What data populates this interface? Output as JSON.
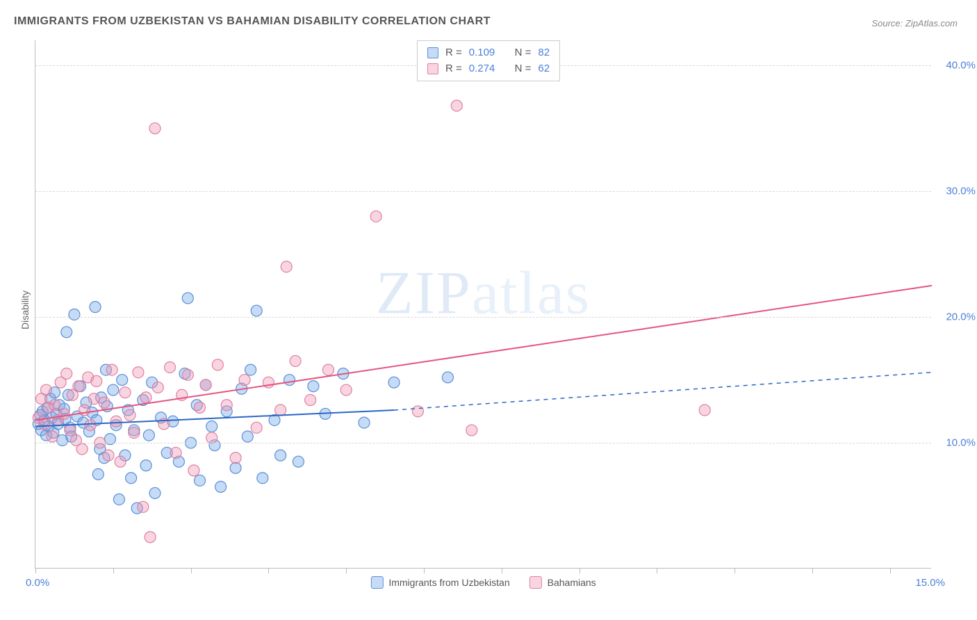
{
  "title": "IMMIGRANTS FROM UZBEKISTAN VS BAHAMIAN DISABILITY CORRELATION CHART",
  "source": "Source: ZipAtlas.com",
  "ylabel": "Disability",
  "watermark": {
    "bold": "ZIP",
    "light": "atlas"
  },
  "chart": {
    "type": "scatter",
    "background_color": "#ffffff",
    "grid_color": "#d8d8d8",
    "axis_color": "#bbbbbb",
    "tick_label_color": "#4a7fd8",
    "tick_fontsize": 15,
    "title_fontsize": 16,
    "xlim": [
      0,
      15
    ],
    "ylim": [
      0,
      42
    ],
    "xticks": [
      0,
      1.3,
      2.6,
      3.9,
      5.2,
      6.5,
      7.8,
      9.1,
      10.4,
      11.7,
      13.0,
      14.3
    ],
    "xtick_labels": {
      "0": "0.0%",
      "15": "15.0%"
    },
    "yticks": [
      10,
      20,
      30,
      40
    ],
    "ytick_labels": [
      "10.0%",
      "20.0%",
      "30.0%",
      "40.0%"
    ],
    "marker_radius": 8,
    "marker_stroke_width": 1.2,
    "line_width": 2,
    "series": [
      {
        "name": "Immigrants from Uzbekistan",
        "fill": "rgba(120,170,230,0.42)",
        "stroke": "#5b8fd6",
        "line_color": "#2b66c4",
        "stats": {
          "R": "0.109",
          "N": "82"
        },
        "trend": {
          "x1": 0,
          "y1": 11.3,
          "x2_solid": 6.0,
          "y2_solid": 12.6,
          "x2": 15,
          "y2": 15.6
        },
        "points": [
          [
            0.05,
            11.5
          ],
          [
            0.08,
            12.2
          ],
          [
            0.1,
            11.0
          ],
          [
            0.12,
            12.5
          ],
          [
            0.15,
            11.8
          ],
          [
            0.18,
            10.6
          ],
          [
            0.2,
            12.8
          ],
          [
            0.22,
            11.3
          ],
          [
            0.25,
            13.5
          ],
          [
            0.28,
            12.0
          ],
          [
            0.3,
            10.8
          ],
          [
            0.32,
            14.0
          ],
          [
            0.35,
            12.3
          ],
          [
            0.38,
            11.5
          ],
          [
            0.4,
            13.0
          ],
          [
            0.45,
            10.2
          ],
          [
            0.48,
            12.7
          ],
          [
            0.5,
            11.9
          ],
          [
            0.52,
            18.8
          ],
          [
            0.55,
            13.8
          ],
          [
            0.58,
            11.2
          ],
          [
            0.6,
            10.5
          ],
          [
            0.65,
            20.2
          ],
          [
            0.7,
            12.1
          ],
          [
            0.75,
            14.5
          ],
          [
            0.8,
            11.6
          ],
          [
            0.85,
            13.2
          ],
          [
            0.9,
            10.9
          ],
          [
            0.95,
            12.4
          ],
          [
            1.0,
            20.8
          ],
          [
            1.02,
            11.8
          ],
          [
            1.05,
            7.5
          ],
          [
            1.08,
            9.5
          ],
          [
            1.1,
            13.6
          ],
          [
            1.15,
            8.8
          ],
          [
            1.18,
            15.8
          ],
          [
            1.2,
            12.9
          ],
          [
            1.25,
            10.3
          ],
          [
            1.3,
            14.2
          ],
          [
            1.35,
            11.4
          ],
          [
            1.4,
            5.5
          ],
          [
            1.45,
            15.0
          ],
          [
            1.5,
            9.0
          ],
          [
            1.55,
            12.6
          ],
          [
            1.6,
            7.2
          ],
          [
            1.65,
            11.0
          ],
          [
            1.7,
            4.8
          ],
          [
            1.8,
            13.4
          ],
          [
            1.85,
            8.2
          ],
          [
            1.9,
            10.6
          ],
          [
            1.95,
            14.8
          ],
          [
            2.0,
            6.0
          ],
          [
            2.1,
            12.0
          ],
          [
            2.2,
            9.2
          ],
          [
            2.3,
            11.7
          ],
          [
            2.4,
            8.5
          ],
          [
            2.5,
            15.5
          ],
          [
            2.55,
            21.5
          ],
          [
            2.6,
            10.0
          ],
          [
            2.7,
            13.0
          ],
          [
            2.75,
            7.0
          ],
          [
            2.85,
            14.6
          ],
          [
            2.95,
            11.3
          ],
          [
            3.0,
            9.8
          ],
          [
            3.1,
            6.5
          ],
          [
            3.2,
            12.5
          ],
          [
            3.35,
            8.0
          ],
          [
            3.45,
            14.3
          ],
          [
            3.55,
            10.5
          ],
          [
            3.6,
            15.8
          ],
          [
            3.7,
            20.5
          ],
          [
            3.8,
            7.2
          ],
          [
            4.0,
            11.8
          ],
          [
            4.1,
            9.0
          ],
          [
            4.25,
            15.0
          ],
          [
            4.4,
            8.5
          ],
          [
            4.65,
            14.5
          ],
          [
            4.85,
            12.3
          ],
          [
            5.15,
            15.5
          ],
          [
            5.5,
            11.6
          ],
          [
            6.0,
            14.8
          ],
          [
            6.9,
            15.2
          ]
        ]
      },
      {
        "name": "Bahamians",
        "fill": "rgba(240,150,180,0.40)",
        "stroke": "#e07fa0",
        "line_color": "#e3547f",
        "stats": {
          "R": "0.274",
          "N": "62"
        },
        "trend": {
          "x1": 0,
          "y1": 11.8,
          "x2_solid": 15,
          "y2_solid": 22.5,
          "x2": 15,
          "y2": 22.5
        },
        "points": [
          [
            0.05,
            12.0
          ],
          [
            0.1,
            13.5
          ],
          [
            0.15,
            11.5
          ],
          [
            0.18,
            14.2
          ],
          [
            0.22,
            12.8
          ],
          [
            0.28,
            10.5
          ],
          [
            0.32,
            13.0
          ],
          [
            0.38,
            11.8
          ],
          [
            0.42,
            14.8
          ],
          [
            0.48,
            12.3
          ],
          [
            0.52,
            15.5
          ],
          [
            0.58,
            11.0
          ],
          [
            0.62,
            13.8
          ],
          [
            0.68,
            10.2
          ],
          [
            0.72,
            14.5
          ],
          [
            0.78,
            9.5
          ],
          [
            0.82,
            12.6
          ],
          [
            0.88,
            15.2
          ],
          [
            0.92,
            11.4
          ],
          [
            0.98,
            13.5
          ],
          [
            1.02,
            14.9
          ],
          [
            1.08,
            10.0
          ],
          [
            1.15,
            13.2
          ],
          [
            1.22,
            9.0
          ],
          [
            1.28,
            15.8
          ],
          [
            1.35,
            11.7
          ],
          [
            1.42,
            8.5
          ],
          [
            1.5,
            14.0
          ],
          [
            1.58,
            12.2
          ],
          [
            1.65,
            10.8
          ],
          [
            1.72,
            15.6
          ],
          [
            1.8,
            4.9
          ],
          [
            1.85,
            13.6
          ],
          [
            1.92,
            2.5
          ],
          [
            2.0,
            35.0
          ],
          [
            2.05,
            14.4
          ],
          [
            2.15,
            11.5
          ],
          [
            2.25,
            16.0
          ],
          [
            2.35,
            9.2
          ],
          [
            2.45,
            13.8
          ],
          [
            2.55,
            15.4
          ],
          [
            2.65,
            7.8
          ],
          [
            2.75,
            12.8
          ],
          [
            2.85,
            14.6
          ],
          [
            2.95,
            10.4
          ],
          [
            3.05,
            16.2
          ],
          [
            3.2,
            13.0
          ],
          [
            3.35,
            8.8
          ],
          [
            3.5,
            15.0
          ],
          [
            3.7,
            11.2
          ],
          [
            3.9,
            14.8
          ],
          [
            4.1,
            12.6
          ],
          [
            4.2,
            24.0
          ],
          [
            4.35,
            16.5
          ],
          [
            4.6,
            13.4
          ],
          [
            4.9,
            15.8
          ],
          [
            5.2,
            14.2
          ],
          [
            5.7,
            28.0
          ],
          [
            6.4,
            12.5
          ],
          [
            7.05,
            36.8
          ],
          [
            7.3,
            11.0
          ],
          [
            11.2,
            12.6
          ]
        ]
      }
    ]
  }
}
